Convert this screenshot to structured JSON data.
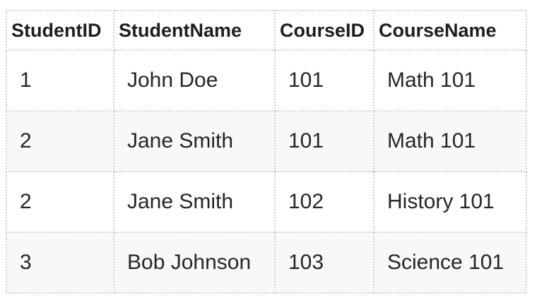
{
  "table": {
    "columns": [
      "StudentID",
      "StudentName",
      "CourseID",
      "CourseName"
    ],
    "rows": [
      [
        "1",
        "John Doe",
        "101",
        "Math 101"
      ],
      [
        "2",
        "Jane Smith",
        "101",
        "Math 101"
      ],
      [
        "2",
        "Jane Smith",
        "102",
        "History 101"
      ],
      [
        "3",
        "Bob Johnson",
        "103",
        "Science 101"
      ]
    ]
  },
  "colors": {
    "border": "#cfcfcf",
    "row_alt_background": "#f8f8f8",
    "text": "#222222"
  }
}
